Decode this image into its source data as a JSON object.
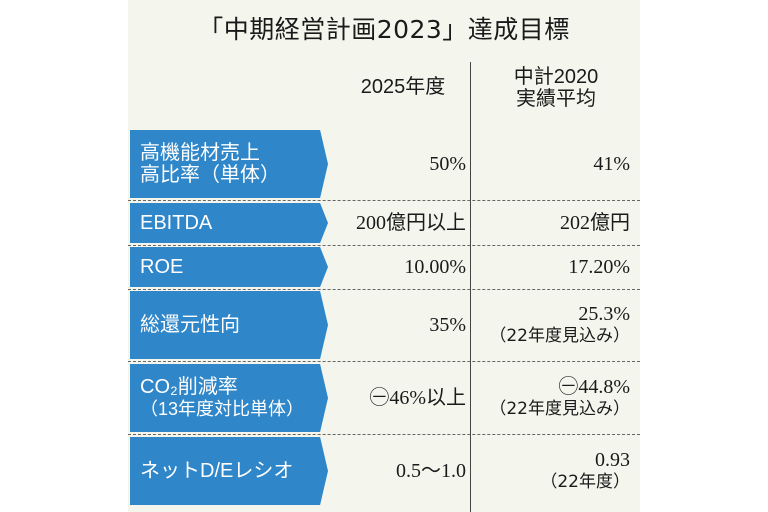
{
  "title": "「中期経営計画2023」達成目標",
  "columns": {
    "col1": "2025年度",
    "col2_line1": "中計2020",
    "col2_line2": "実績平均"
  },
  "rows": [
    {
      "label_line1": "高機能材売上",
      "label_line2": "高比率（単体）",
      "target": "50%",
      "actual": "41%",
      "actual_note": ""
    },
    {
      "label_line1": "EBITDA",
      "label_line2": "",
      "target": "200億円以上",
      "actual": "202億円",
      "actual_note": ""
    },
    {
      "label_line1": "ROE",
      "label_line2": "",
      "target": "10.00%",
      "actual": "17.20%",
      "actual_note": ""
    },
    {
      "label_line1": "総還元性向",
      "label_line2": "",
      "target": "35%",
      "actual": "25.3%",
      "actual_note": "（22年度見込み）"
    },
    {
      "label_line1": "CO₂削減率",
      "label_line2": "（13年度対比単体）",
      "target": "㊀46%以上",
      "actual": "㊀44.8%",
      "actual_note": "（22年度見込み）"
    },
    {
      "label_line1": "ネットD/Eレシオ",
      "label_line2": "",
      "target": "0.5〜1.0",
      "actual": "0.93",
      "actual_note": "（22年度）"
    }
  ],
  "colors": {
    "label_bg": "#2f86c8",
    "panel_bg": "#f4f6ee"
  }
}
